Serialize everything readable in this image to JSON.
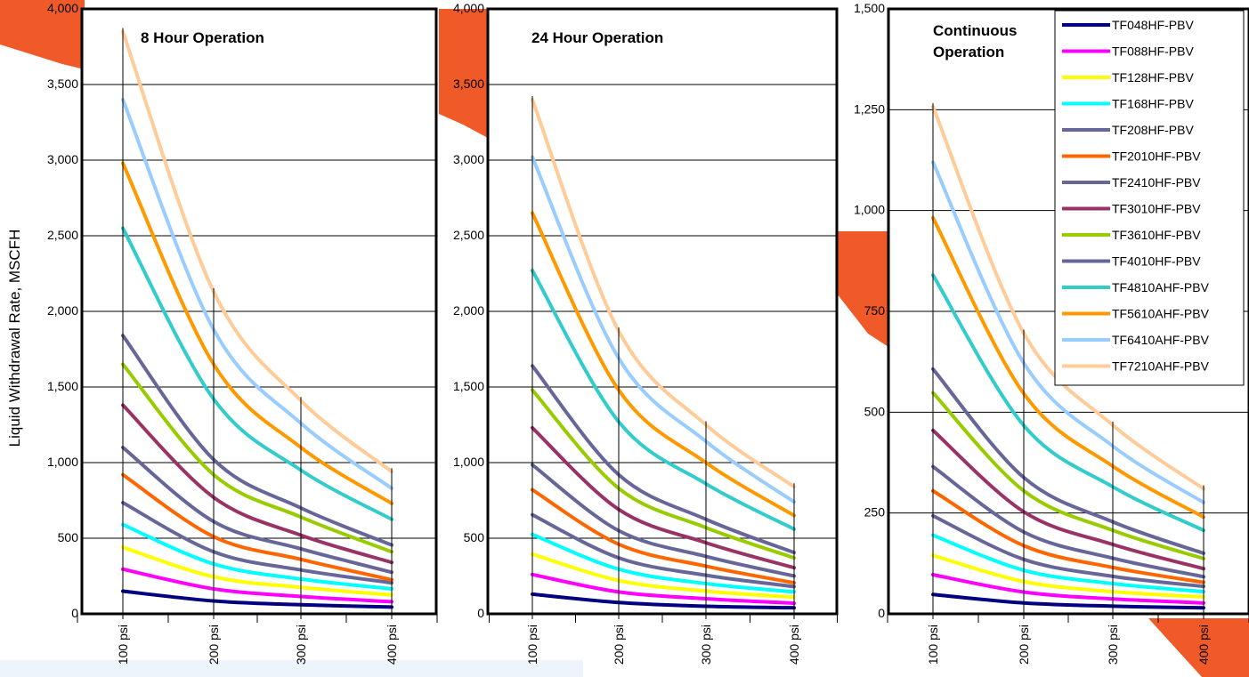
{
  "chart_data": [
    {
      "type": "line",
      "title": "8 Hour Operation",
      "x": [
        100,
        200,
        300,
        400
      ],
      "x_tick_labels": [
        "100 psi",
        "200 psi",
        "300 psi",
        "400 psi"
      ],
      "ylabel": "Liquid Withdrawal Rate, MSCFH",
      "ylim": [
        0,
        4000
      ],
      "y_ticks": [
        0,
        500,
        1000,
        1500,
        2000,
        2500,
        3000,
        3500,
        4000
      ],
      "y_tick_labels": [
        "0",
        "500",
        "1,000",
        "1,500",
        "2,000",
        "2,500",
        "3,000",
        "3,500",
        "4,000"
      ],
      "grid": "horizontal",
      "series": [
        {
          "name": "TF048HF-PBV",
          "values": [
            150,
            85,
            60,
            45
          ]
        },
        {
          "name": "TF088HF-PBV",
          "values": [
            295,
            165,
            115,
            80
          ]
        },
        {
          "name": "TF128HF-PBV",
          "values": [
            440,
            245,
            175,
            125
          ]
        },
        {
          "name": "TF168HF-PBV",
          "values": [
            590,
            330,
            230,
            165
          ]
        },
        {
          "name": "TF208HF-PBV",
          "values": [
            735,
            410,
            290,
            205
          ]
        },
        {
          "name": "TF2010HF-PBV",
          "values": [
            920,
            510,
            360,
            225
          ]
        },
        {
          "name": "TF2410HF-PBV",
          "values": [
            1100,
            610,
            430,
            275
          ]
        },
        {
          "name": "TF3010HF-PBV",
          "values": [
            1380,
            770,
            520,
            340
          ]
        },
        {
          "name": "TF3610HF-PBV",
          "values": [
            1650,
            920,
            640,
            410
          ]
        },
        {
          "name": "TF4010HF-PBV",
          "values": [
            1840,
            1020,
            700,
            455
          ]
        },
        {
          "name": "TF4810AHF-PBV",
          "values": [
            2550,
            1420,
            950,
            625
          ]
        },
        {
          "name": "TF5610AHF-PBV",
          "values": [
            2980,
            1650,
            1100,
            730
          ]
        },
        {
          "name": "TF6410AHF-PBV",
          "values": [
            3400,
            1880,
            1260,
            830
          ]
        },
        {
          "name": "TF7210AHF-PBV",
          "values": [
            3850,
            2130,
            1410,
            940
          ]
        }
      ]
    },
    {
      "type": "line",
      "title": "24 Hour Operation",
      "x": [
        100,
        200,
        300,
        400
      ],
      "x_tick_labels": [
        "100 psi",
        "200 psi",
        "300 psi",
        "400 psi"
      ],
      "ylim": [
        0,
        4000
      ],
      "y_ticks": [
        0,
        500,
        1000,
        1500,
        2000,
        2500,
        3000,
        3500,
        4000
      ],
      "y_tick_labels": [
        "0",
        "500",
        "1,000",
        "1,500",
        "2,000",
        "2,500",
        "3,000",
        "3,500",
        "4,000"
      ],
      "grid": "horizontal",
      "series": [
        {
          "name": "TF048HF-PBV",
          "values": [
            130,
            75,
            50,
            40
          ]
        },
        {
          "name": "TF088HF-PBV",
          "values": [
            260,
            145,
            100,
            70
          ]
        },
        {
          "name": "TF128HF-PBV",
          "values": [
            395,
            220,
            150,
            110
          ]
        },
        {
          "name": "TF168HF-PBV",
          "values": [
            525,
            295,
            200,
            145
          ]
        },
        {
          "name": "TF208HF-PBV",
          "values": [
            655,
            370,
            255,
            180
          ]
        },
        {
          "name": "TF2010HF-PBV",
          "values": [
            820,
            460,
            315,
            205
          ]
        },
        {
          "name": "TF2410HF-PBV",
          "values": [
            985,
            550,
            380,
            250
          ]
        },
        {
          "name": "TF3010HF-PBV",
          "values": [
            1230,
            690,
            470,
            305
          ]
        },
        {
          "name": "TF3610HF-PBV",
          "values": [
            1480,
            830,
            570,
            370
          ]
        },
        {
          "name": "TF4010HF-PBV",
          "values": [
            1640,
            920,
            625,
            405
          ]
        },
        {
          "name": "TF4810AHF-PBV",
          "values": [
            2270,
            1270,
            860,
            560
          ]
        },
        {
          "name": "TF5610AHF-PBV",
          "values": [
            2650,
            1480,
            1000,
            650
          ]
        },
        {
          "name": "TF6410AHF-PBV",
          "values": [
            3020,
            1690,
            1140,
            740
          ]
        },
        {
          "name": "TF7210AHF-PBV",
          "values": [
            3400,
            1870,
            1250,
            840
          ]
        }
      ]
    },
    {
      "type": "line",
      "title": [
        "Continuous",
        "Operation"
      ],
      "x": [
        100,
        200,
        300,
        400
      ],
      "x_tick_labels": [
        "100 psi",
        "200 psi",
        "300 psi",
        "400 psi"
      ],
      "ylim": [
        0,
        1500
      ],
      "y_ticks": [
        0,
        250,
        500,
        750,
        1000,
        1250,
        1500
      ],
      "y_tick_labels": [
        "0",
        "250",
        "500",
        "750",
        "1,000",
        "1,250",
        "1,500"
      ],
      "grid": "horizontal",
      "legend": "top-right",
      "series": [
        {
          "name": "TF048HF-PBV",
          "values": [
            48,
            27,
            19,
            15
          ]
        },
        {
          "name": "TF088HF-PBV",
          "values": [
            97,
            54,
            37,
            27
          ]
        },
        {
          "name": "TF128HF-PBV",
          "values": [
            145,
            80,
            55,
            42
          ]
        },
        {
          "name": "TF168HF-PBV",
          "values": [
            195,
            108,
            75,
            55
          ]
        },
        {
          "name": "TF208HF-PBV",
          "values": [
            243,
            135,
            93,
            68
          ]
        },
        {
          "name": "TF2010HF-PBV",
          "values": [
            305,
            169,
            115,
            78
          ]
        },
        {
          "name": "TF2410HF-PBV",
          "values": [
            365,
            203,
            138,
            92
          ]
        },
        {
          "name": "TF3010HF-PBV",
          "values": [
            455,
            253,
            172,
            112
          ]
        },
        {
          "name": "TF3610HF-PBV",
          "values": [
            548,
            305,
            207,
            137
          ]
        },
        {
          "name": "TF4010HF-PBV",
          "values": [
            607,
            338,
            228,
            150
          ]
        },
        {
          "name": "TF4810AHF-PBV",
          "values": [
            840,
            467,
            315,
            207
          ]
        },
        {
          "name": "TF5610AHF-PBV",
          "values": [
            982,
            546,
            366,
            240
          ]
        },
        {
          "name": "TF6410AHF-PBV",
          "values": [
            1120,
            622,
            416,
            276
          ]
        },
        {
          "name": "TF7210AHF-PBV",
          "values": [
            1258,
            696,
            468,
            310
          ]
        }
      ]
    }
  ],
  "colors": {
    "TF048HF-PBV": "#000080",
    "TF088HF-PBV": "#ff00ff",
    "TF128HF-PBV": "#ffff00",
    "TF168HF-PBV": "#00ffff",
    "TF208HF-PBV": "#666699",
    "TF2010HF-PBV": "#ff6600",
    "TF2410HF-PBV": "#666699",
    "TF3010HF-PBV": "#993366",
    "TF3610HF-PBV": "#99cc00",
    "TF4010HF-PBV": "#666699",
    "TF4810AHF-PBV": "#33cccc",
    "TF5610AHF-PBV": "#ff9900",
    "TF6410AHF-PBV": "#99ccff",
    "TF7210AHF-PBV": "#ffcc99",
    "background_accent": "#f05a28"
  }
}
